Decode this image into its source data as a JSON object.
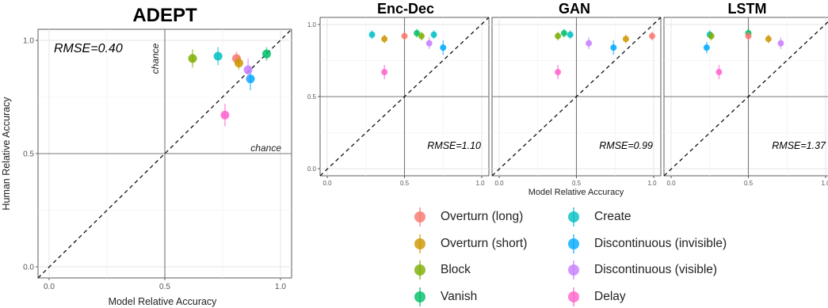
{
  "chart_data": [
    {
      "type": "scatter",
      "title": "ADEPT",
      "xlabel": "Model Relative Accuracy",
      "ylabel": "Human Relative Accuracy",
      "xlim": [
        0,
        1
      ],
      "ylim": [
        0,
        1
      ],
      "xticks": [
        "0.0",
        "0.5",
        "1.0"
      ],
      "yticks": [
        "0.0",
        "0.5",
        "1.0"
      ],
      "rmse_label": "RMSE=0.40",
      "chance_labels": [
        "chance",
        "chance"
      ],
      "grid": true,
      "diagonal": "y = x (dashed)",
      "points": [
        {
          "series": "Overturn (long)",
          "x": 0.81,
          "y": 0.92,
          "err": 0.03
        },
        {
          "series": "Overturn (short)",
          "x": 0.82,
          "y": 0.9,
          "err": 0.03
        },
        {
          "series": "Block",
          "x": 0.62,
          "y": 0.92,
          "err": 0.04
        },
        {
          "series": "Vanish",
          "x": 0.94,
          "y": 0.94,
          "err": 0.03
        },
        {
          "series": "Create",
          "x": 0.73,
          "y": 0.93,
          "err": 0.04
        },
        {
          "series": "Discontinuous (invisible)",
          "x": 0.87,
          "y": 0.83,
          "err": 0.05
        },
        {
          "series": "Discontinuous (visible)",
          "x": 0.86,
          "y": 0.87,
          "err": 0.05
        },
        {
          "series": "Delay",
          "x": 0.76,
          "y": 0.67,
          "err": 0.05
        }
      ]
    },
    {
      "type": "scatter",
      "title": "Enc-Dec",
      "xlabel": "",
      "ylabel": "",
      "xlim": [
        0,
        1
      ],
      "ylim": [
        0,
        1
      ],
      "xticks": [
        "0.0",
        "0.5",
        "1.0"
      ],
      "yticks": [
        "0.0",
        "0.5",
        "1.0"
      ],
      "rmse_label": "RMSE=1.10",
      "grid": true,
      "diagonal": "y = x (dashed)",
      "points": [
        {
          "series": "Create",
          "x": 0.29,
          "y": 0.93,
          "err": 0.03
        },
        {
          "series": "Overturn (short)",
          "x": 0.37,
          "y": 0.9,
          "err": 0.03
        },
        {
          "series": "Overturn (long)",
          "x": 0.5,
          "y": 0.92,
          "err": 0.03
        },
        {
          "series": "Vanish",
          "x": 0.58,
          "y": 0.94,
          "err": 0.03
        },
        {
          "series": "Block",
          "x": 0.61,
          "y": 0.92,
          "err": 0.03
        },
        {
          "series": "Create",
          "x": 0.69,
          "y": 0.93,
          "err": 0.03
        },
        {
          "series": "Discontinuous (visible)",
          "x": 0.66,
          "y": 0.87,
          "err": 0.04
        },
        {
          "series": "Discontinuous (invisible)",
          "x": 0.75,
          "y": 0.84,
          "err": 0.05
        },
        {
          "series": "Delay",
          "x": 0.37,
          "y": 0.67,
          "err": 0.05
        }
      ]
    },
    {
      "type": "scatter",
      "title": "GAN",
      "xlabel": "Model Relative Accuracy",
      "ylabel": "",
      "xlim": [
        0,
        1
      ],
      "ylim": [
        0,
        1
      ],
      "xticks": [
        "0.0",
        "0.5",
        "1.0"
      ],
      "yticks": [],
      "rmse_label": "RMSE=0.99",
      "grid": true,
      "diagonal": "y = x (dashed)",
      "points": [
        {
          "series": "Block",
          "x": 0.38,
          "y": 0.92,
          "err": 0.03
        },
        {
          "series": "Vanish",
          "x": 0.42,
          "y": 0.94,
          "err": 0.03
        },
        {
          "series": "Create",
          "x": 0.46,
          "y": 0.93,
          "err": 0.03
        },
        {
          "series": "Discontinuous (visible)",
          "x": 0.58,
          "y": 0.87,
          "err": 0.04
        },
        {
          "series": "Discontinuous (invisible)",
          "x": 0.74,
          "y": 0.84,
          "err": 0.05
        },
        {
          "series": "Overturn (short)",
          "x": 0.82,
          "y": 0.9,
          "err": 0.03
        },
        {
          "series": "Overturn (long)",
          "x": 0.99,
          "y": 0.92,
          "err": 0.03
        },
        {
          "series": "Delay",
          "x": 0.38,
          "y": 0.67,
          "err": 0.05
        }
      ]
    },
    {
      "type": "scatter",
      "title": "LSTM",
      "xlabel": "",
      "ylabel": "",
      "xlim": [
        0,
        1
      ],
      "ylim": [
        0,
        1
      ],
      "xticks": [
        "0.0",
        "0.5",
        "1.0"
      ],
      "yticks": [],
      "rmse_label": "RMSE=1.37",
      "grid": true,
      "diagonal": "y = x (dashed)",
      "points": [
        {
          "series": "Create",
          "x": 0.25,
          "y": 0.93,
          "err": 0.03
        },
        {
          "series": "Block",
          "x": 0.26,
          "y": 0.92,
          "err": 0.03
        },
        {
          "series": "Discontinuous (invisible)",
          "x": 0.23,
          "y": 0.84,
          "err": 0.04
        },
        {
          "series": "Delay",
          "x": 0.31,
          "y": 0.67,
          "err": 0.05
        },
        {
          "series": "Vanish",
          "x": 0.5,
          "y": 0.94,
          "err": 0.03
        },
        {
          "series": "Overturn (long)",
          "x": 0.5,
          "y": 0.92,
          "err": 0.03
        },
        {
          "series": "Overturn (short)",
          "x": 0.63,
          "y": 0.9,
          "err": 0.03
        },
        {
          "series": "Discontinuous (visible)",
          "x": 0.71,
          "y": 0.87,
          "err": 0.04
        }
      ]
    }
  ],
  "legend": {
    "items": [
      {
        "label": "Overturn (long)",
        "color": "#F8766D"
      },
      {
        "label": "Overturn (short)",
        "color": "#CD9600"
      },
      {
        "label": "Block",
        "color": "#7CAE00"
      },
      {
        "label": "Vanish",
        "color": "#00BE67"
      },
      {
        "label": "Create",
        "color": "#00BFC4"
      },
      {
        "label": "Discontinuous (invisible)",
        "color": "#00A9FF"
      },
      {
        "label": "Discontinuous (visible)",
        "color": "#C77CFF"
      },
      {
        "label": "Delay",
        "color": "#FF61CC"
      }
    ]
  }
}
